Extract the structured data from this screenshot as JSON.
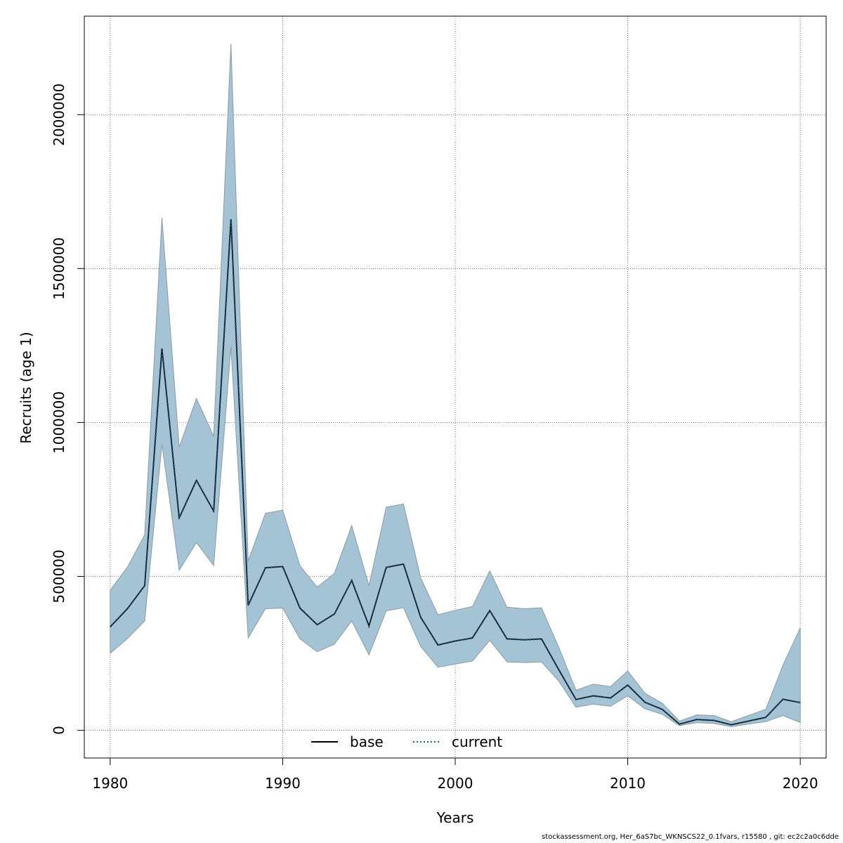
{
  "chart_data": {
    "type": "line",
    "title": "",
    "xlabel": "Years",
    "ylabel": "Recruits (age 1)",
    "xlim": [
      1978.5,
      2021.5
    ],
    "ylim": [
      -90000,
      2320000
    ],
    "x_ticks": [
      1980,
      1990,
      2000,
      2010,
      2020
    ],
    "y_ticks": [
      0,
      500000,
      1000000,
      1500000,
      2000000
    ],
    "grid": true,
    "legend_position": "bottom-center",
    "colors": {
      "band_fill": "#a4c4d5",
      "band_edge": "#8a9aa3",
      "base": "#000000",
      "current": "#1f5f8f",
      "grid": "#555555"
    },
    "x": [
      1980,
      1981,
      1982,
      1983,
      1984,
      1985,
      1986,
      1987,
      1988,
      1989,
      1990,
      1991,
      1992,
      1993,
      1994,
      1995,
      1996,
      1997,
      1998,
      1999,
      2000,
      2001,
      2002,
      2003,
      2004,
      2005,
      2006,
      2007,
      2008,
      2009,
      2010,
      2011,
      2012,
      2013,
      2014,
      2015,
      2016,
      2017,
      2018,
      2019,
      2020
    ],
    "band": {
      "name": "confidence interval",
      "upper": [
        455000,
        530000,
        635000,
        1665000,
        920000,
        1078000,
        955000,
        2230000,
        550000,
        705000,
        715000,
        535000,
        465000,
        510000,
        665000,
        470000,
        725000,
        735000,
        495000,
        375000,
        390000,
        402000,
        518000,
        400000,
        395000,
        398000,
        270000,
        130000,
        150000,
        142000,
        193000,
        120000,
        88000,
        30000,
        50000,
        48000,
        28000,
        48000,
        68000,
        212000,
        333000
      ],
      "lower": [
        250000,
        298000,
        355000,
        930000,
        520000,
        610000,
        535000,
        1245000,
        300000,
        395000,
        397000,
        297000,
        255000,
        280000,
        355000,
        245000,
        388000,
        398000,
        272000,
        205000,
        215000,
        225000,
        292000,
        222000,
        220000,
        222000,
        160000,
        75000,
        85000,
        78000,
        112000,
        70000,
        52000,
        15000,
        25000,
        22000,
        12000,
        20000,
        28000,
        48000,
        25000
      ]
    },
    "series": [
      {
        "name": "base",
        "style": "solid",
        "values": [
          336000,
          395000,
          470000,
          1240000,
          690000,
          812000,
          712000,
          1660000,
          406000,
          528000,
          532000,
          397000,
          343000,
          378000,
          487000,
          339000,
          529000,
          540000,
          367000,
          277000,
          290000,
          300000,
          389000,
          297000,
          294000,
          297000,
          197000,
          100000,
          112000,
          105000,
          147000,
          91000,
          68000,
          20000,
          35000,
          32000,
          18000,
          30000,
          42000,
          101000,
          90000
        ]
      },
      {
        "name": "current",
        "style": "dotted",
        "values": [
          336000,
          395000,
          470000,
          1240000,
          690000,
          812000,
          712000,
          1660000,
          406000,
          528000,
          532000,
          397000,
          343000,
          378000,
          487000,
          339000,
          529000,
          540000,
          367000,
          277000,
          290000,
          300000,
          389000,
          297000,
          294000,
          297000,
          197000,
          100000,
          112000,
          105000,
          147000,
          91000,
          68000,
          20000,
          35000,
          32000,
          18000,
          30000,
          42000,
          101000,
          90000
        ]
      }
    ]
  },
  "footer": "stockassessment.org, Her_6aS7bc_WKNSCS22_0.1fvars, r15580 , git: ec2c2a0c6dde"
}
